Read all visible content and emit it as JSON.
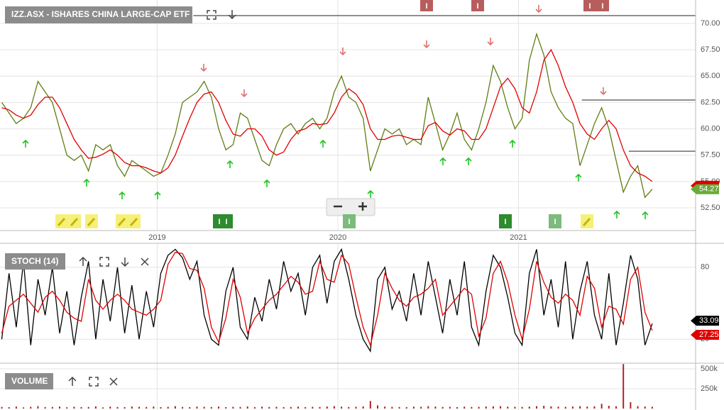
{
  "chart_data": [
    {
      "type": "line",
      "title": "IZZ.ASX - ISHARES CHINA LARGE-CAP ETF",
      "x": [
        2018.14,
        2018.18,
        2018.22,
        2018.26,
        2018.3,
        2018.34,
        2018.38,
        2018.42,
        2018.46,
        2018.5,
        2018.54,
        2018.58,
        2018.62,
        2018.66,
        2018.7,
        2018.74,
        2018.78,
        2018.82,
        2018.86,
        2018.9,
        2018.94,
        2018.98,
        2019.02,
        2019.06,
        2019.1,
        2019.14,
        2019.18,
        2019.22,
        2019.26,
        2019.3,
        2019.34,
        2019.38,
        2019.42,
        2019.46,
        2019.5,
        2019.54,
        2019.58,
        2019.62,
        2019.66,
        2019.7,
        2019.74,
        2019.78,
        2019.82,
        2019.86,
        2019.9,
        2019.94,
        2019.98,
        2020.02,
        2020.06,
        2020.1,
        2020.14,
        2020.18,
        2020.22,
        2020.26,
        2020.3,
        2020.34,
        2020.38,
        2020.42,
        2020.46,
        2020.5,
        2020.54,
        2020.58,
        2020.62,
        2020.66,
        2020.7,
        2020.74,
        2020.78,
        2020.82,
        2020.86,
        2020.9,
        2020.94,
        2020.98,
        2021.02,
        2021.06,
        2021.1,
        2021.14,
        2021.18,
        2021.22,
        2021.26,
        2021.3,
        2021.34,
        2021.38,
        2021.42,
        2021.46,
        2021.5,
        2021.54,
        2021.58,
        2021.62,
        2021.66,
        2021.7,
        2021.74
      ],
      "series": [
        {
          "color": "#5f7d12",
          "values": [
            62.5,
            61.5,
            60.5,
            61,
            62,
            64.5,
            63.5,
            62.5,
            60,
            57.5,
            57,
            57.5,
            56,
            58.5,
            58,
            58.5,
            56.5,
            55.5,
            57,
            56.5,
            56,
            55.5,
            55.8,
            57.5,
            59.5,
            62.5,
            63,
            63.5,
            64.5,
            63,
            60,
            58,
            58.5,
            61.5,
            61,
            59,
            57,
            56.5,
            58.5,
            60,
            60.5,
            59.5,
            60.5,
            61,
            60,
            61,
            63.5,
            65,
            63,
            62.5,
            61,
            56,
            58,
            60,
            59.5,
            60,
            58.5,
            59,
            58.5,
            63,
            60.5,
            58,
            59.5,
            61.5,
            59,
            58,
            60,
            62.5,
            66,
            64.5,
            62,
            60,
            61,
            66.5,
            69,
            67,
            63.5,
            62,
            61,
            60.5,
            56.5,
            58.5,
            60.5,
            62,
            60,
            57,
            54,
            55.5,
            56.5,
            53.5,
            54.27
          ]
        },
        {
          "color": "#e00000",
          "values": [
            62,
            61.8,
            61.3,
            61,
            61.3,
            62.3,
            63,
            63,
            62,
            60.5,
            59,
            58,
            57.2,
            57.3,
            57.6,
            58,
            57.5,
            56.8,
            56.5,
            56.5,
            56.3,
            56,
            55.8,
            56.3,
            57.5,
            59.3,
            61,
            62.5,
            63.3,
            63.5,
            62.5,
            60.8,
            59.5,
            59.3,
            60,
            60,
            59.3,
            58,
            57.5,
            57.8,
            59,
            59.8,
            60,
            60.5,
            60.4,
            60.5,
            61.5,
            63,
            63.8,
            63.3,
            62.3,
            60,
            59,
            59,
            59.3,
            59.4,
            59.2,
            59,
            59,
            60.3,
            60.6,
            59.8,
            59.4,
            60,
            59.8,
            59,
            59,
            60,
            62,
            64,
            64.8,
            63.8,
            62,
            61.5,
            63.5,
            66.5,
            67.5,
            66,
            64,
            62.5,
            60.5,
            59.5,
            59,
            60,
            60.8,
            60,
            58,
            56.5,
            55.8,
            55.5,
            55
          ]
        }
      ],
      "hlines": [
        {
          "y": 70.74,
          "x": 2019.2
        },
        {
          "y": 62.73,
          "x": 2021.35
        },
        {
          "y": 57.88,
          "x": 2021.61
        }
      ],
      "badge_label": "I",
      "xlim": [
        2018.13,
        2021.98
      ],
      "xticks": [
        2019,
        2020,
        2021
      ],
      "ylim": [
        50.35,
        72.22
      ],
      "yticks": [
        {
          "value": 52.5,
          "label": "52.50"
        },
        {
          "value": 55,
          "label": "55.00"
        },
        {
          "value": 57.5,
          "label": "57.50"
        },
        {
          "value": 60,
          "label": "60.00"
        },
        {
          "value": 62.5,
          "label": "62.50"
        },
        {
          "value": 65,
          "label": "65.00"
        },
        {
          "value": 67.5,
          "label": "67.50"
        },
        {
          "value": 70,
          "label": "70.00"
        }
      ],
      "grid": true
    },
    {
      "type": "line",
      "title": "STOCH (14)",
      "x": [
        2018.14,
        2018.18,
        2018.22,
        2018.26,
        2018.3,
        2018.34,
        2018.38,
        2018.42,
        2018.46,
        2018.5,
        2018.54,
        2018.58,
        2018.62,
        2018.66,
        2018.7,
        2018.74,
        2018.78,
        2018.82,
        2018.86,
        2018.9,
        2018.94,
        2018.98,
        2019.02,
        2019.06,
        2019.1,
        2019.14,
        2019.18,
        2019.22,
        2019.26,
        2019.3,
        2019.34,
        2019.38,
        2019.42,
        2019.46,
        2019.5,
        2019.54,
        2019.58,
        2019.62,
        2019.66,
        2019.7,
        2019.74,
        2019.78,
        2019.82,
        2019.86,
        2019.9,
        2019.94,
        2019.98,
        2020.02,
        2020.06,
        2020.1,
        2020.14,
        2020.18,
        2020.22,
        2020.26,
        2020.3,
        2020.34,
        2020.38,
        2020.42,
        2020.46,
        2020.5,
        2020.54,
        2020.58,
        2020.62,
        2020.66,
        2020.7,
        2020.74,
        2020.78,
        2020.82,
        2020.86,
        2020.9,
        2020.94,
        2020.98,
        2021.02,
        2021.06,
        2021.1,
        2021.14,
        2021.18,
        2021.22,
        2021.26,
        2021.3,
        2021.34,
        2021.38,
        2021.42,
        2021.46,
        2021.5,
        2021.54,
        2021.58,
        2021.62,
        2021.66,
        2021.7,
        2021.74
      ],
      "series": [
        {
          "color": "#000000",
          "values": [
            20,
            75,
            30,
            85,
            15,
            70,
            40,
            80,
            25,
            60,
            15,
            55,
            85,
            20,
            70,
            35,
            80,
            25,
            65,
            20,
            60,
            30,
            75,
            90,
            95,
            88,
            70,
            85,
            40,
            20,
            15,
            60,
            80,
            30,
            20,
            55,
            35,
            70,
            45,
            85,
            60,
            75,
            40,
            80,
            90,
            50,
            85,
            95,
            70,
            40,
            20,
            10,
            70,
            80,
            45,
            60,
            35,
            75,
            40,
            85,
            55,
            25,
            70,
            40,
            85,
            30,
            15,
            60,
            90,
            80,
            55,
            25,
            15,
            75,
            95,
            40,
            70,
            30,
            85,
            20,
            60,
            85,
            40,
            20,
            75,
            15,
            50,
            90,
            70,
            15,
            33.09
          ]
        },
        {
          "color": "#e00000",
          "values": [
            25,
            47.5,
            52.5,
            57.5,
            50,
            42.5,
            55,
            60,
            52.5,
            42.5,
            37.5,
            35,
            70,
            52.5,
            45,
            52.5,
            57.5,
            52.5,
            45,
            42.5,
            40,
            45,
            52.5,
            82.5,
            92.5,
            91.5,
            79,
            77.5,
            62.5,
            30,
            17.5,
            37.5,
            70,
            55,
            25,
            37.5,
            45,
            52.5,
            57.5,
            65,
            72.5,
            67.5,
            57.5,
            60,
            85,
            70,
            67.5,
            90,
            82.5,
            55,
            30,
            15,
            40,
            75,
            62.5,
            52.5,
            47.5,
            55,
            57.5,
            62.5,
            70,
            40,
            47.5,
            55,
            62.5,
            57.5,
            22.5,
            37.5,
            75,
            85,
            67.5,
            40,
            20,
            45,
            85,
            67.5,
            55,
            50,
            57.5,
            52.5,
            40,
            72.5,
            62.5,
            30,
            47.5,
            45,
            32.5,
            70,
            80,
            42.5,
            27.25
          ]
        }
      ],
      "xlim": [
        2018.13,
        2021.98
      ],
      "ylim": [
        0,
        100
      ],
      "yticks": [
        20,
        80
      ],
      "grid": true
    },
    {
      "type": "bar",
      "title": "VOLUME",
      "x": [
        2018.14,
        2018.18,
        2018.22,
        2018.26,
        2018.3,
        2018.34,
        2018.38,
        2018.42,
        2018.46,
        2018.5,
        2018.54,
        2018.58,
        2018.62,
        2018.66,
        2018.7,
        2018.74,
        2018.78,
        2018.82,
        2018.86,
        2018.9,
        2018.94,
        2018.98,
        2019.02,
        2019.06,
        2019.1,
        2019.14,
        2019.18,
        2019.22,
        2019.26,
        2019.3,
        2019.34,
        2019.38,
        2019.42,
        2019.46,
        2019.5,
        2019.54,
        2019.58,
        2019.62,
        2019.66,
        2019.7,
        2019.74,
        2019.78,
        2019.82,
        2019.86,
        2019.9,
        2019.94,
        2019.98,
        2020.02,
        2020.06,
        2020.1,
        2020.14,
        2020.18,
        2020.22,
        2020.26,
        2020.3,
        2020.34,
        2020.38,
        2020.42,
        2020.46,
        2020.5,
        2020.54,
        2020.58,
        2020.62,
        2020.66,
        2020.7,
        2020.74,
        2020.78,
        2020.82,
        2020.86,
        2020.9,
        2020.94,
        2020.98,
        2021.02,
        2021.06,
        2021.1,
        2021.14,
        2021.18,
        2021.22,
        2021.26,
        2021.3,
        2021.34,
        2021.38,
        2021.42,
        2021.46,
        2021.5,
        2021.54,
        2021.58,
        2021.62,
        2021.66,
        2021.7,
        2021.74
      ],
      "values": [
        20000,
        18000,
        25000,
        15000,
        22000,
        30000,
        18000,
        20000,
        25000,
        16000,
        22000,
        18000,
        20000,
        28000,
        15000,
        24000,
        20000,
        18000,
        26000,
        22000,
        20000,
        25000,
        18000,
        22000,
        30000,
        20000,
        18000,
        24000,
        22000,
        20000,
        25000,
        18000,
        22000,
        20000,
        26000,
        18000,
        24000,
        20000,
        22000,
        18000,
        20000,
        24000,
        18000,
        22000,
        20000,
        26000,
        30000,
        24000,
        20000,
        22000,
        28000,
        95000,
        40000,
        25000,
        22000,
        20000,
        18000,
        24000,
        22000,
        30000,
        25000,
        20000,
        22000,
        18000,
        24000,
        20000,
        22000,
        26000,
        28000,
        30000,
        24000,
        22000,
        20000,
        25000,
        30000,
        35000,
        28000,
        24000,
        22000,
        26000,
        30000,
        25000,
        28000,
        60000,
        35000,
        28000,
        560000,
        80000,
        30000,
        25000,
        22000
      ],
      "color": "#b22222",
      "xlim": [
        2018.13,
        2021.98
      ],
      "ylim": [
        -18000,
        571000
      ],
      "yticks": [
        {
          "value": 250000,
          "label": "250k"
        },
        {
          "value": 500000,
          "label": "500k"
        }
      ],
      "grid": true
    }
  ]
}
